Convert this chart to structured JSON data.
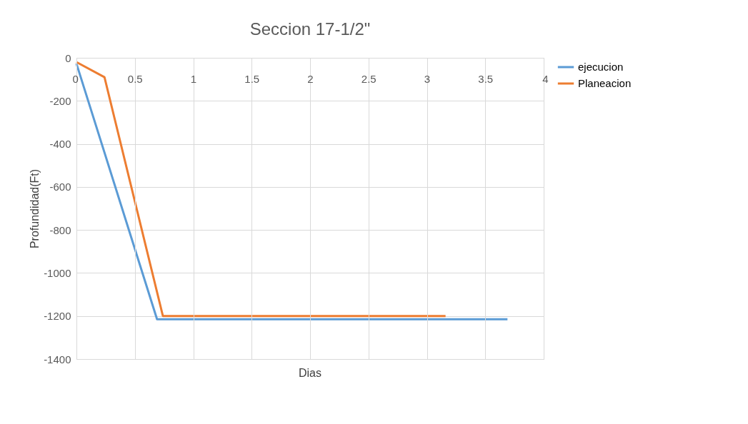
{
  "chart_data": {
    "type": "line",
    "title": "Seccion 17-1/2\"",
    "xlabel": "Dias",
    "ylabel": "Profundidad(Ft)",
    "series": [
      {
        "name": "ejecucion",
        "color": "#5b9bd5",
        "x": [
          0,
          0.69,
          3.69
        ],
        "values": [
          -27,
          -1215,
          -1215
        ]
      },
      {
        "name": "Planeacion",
        "color": "#ed7d31",
        "x": [
          0,
          0.24,
          0.74,
          3.16
        ],
        "values": [
          -20,
          -90,
          -1200,
          -1200
        ]
      }
    ],
    "xlim": [
      0,
      4
    ],
    "xticks": [
      0,
      0.5,
      1,
      1.5,
      2,
      2.5,
      3,
      3.5,
      4
    ],
    "ylim": [
      -1400,
      0
    ],
    "yticks": [
      -1400,
      -1200,
      -1000,
      -800,
      -600,
      -400,
      -200,
      0
    ],
    "grid": true,
    "legend": "right",
    "marker": "none",
    "line_style": "solid"
  }
}
